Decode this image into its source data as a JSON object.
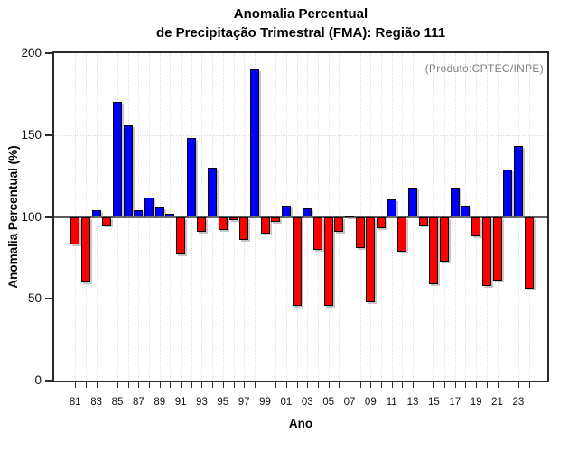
{
  "title": {
    "line1": "Anomalia Percentual",
    "line2": "de Precipitação Trimestral (FMA): Região 111"
  },
  "annotation": "(Produto:CPTEC/INPE)",
  "axes": {
    "y": {
      "label": "Anomalia Percentual (%)",
      "tick_labels": [
        "0",
        "50",
        "100",
        "150",
        "200"
      ],
      "grid_values": [
        50,
        150
      ]
    },
    "x": {
      "label": "Ano",
      "tick_labels": [
        "81",
        "83",
        "85",
        "87",
        "89",
        "91",
        "93",
        "95",
        "97",
        "99",
        "01",
        "03",
        "05",
        "07",
        "09",
        "11",
        "13",
        "15",
        "17",
        "19",
        "21",
        "23"
      ]
    }
  },
  "colors": {
    "bar_above_baseline": "#0000ff",
    "bar_below_baseline": "#ff0000",
    "bar_border": "#000000",
    "baseline_line": "#5a5a5a",
    "gridline": "#e2e2e2",
    "annotation_text": "#808080"
  },
  "chart_data": {
    "type": "bar",
    "title": "Anomalia Percentual de Precipitação Trimestral (FMA): Região 111",
    "xlabel": "Ano",
    "ylabel": "Anomalia Percentual (%)",
    "ylim": [
      0,
      200
    ],
    "baseline": 100,
    "grid": "dotted: vertical line at every year, horizontal lines at 50 and 150",
    "legend_position": "none",
    "color_rule": "blue when value >= 100, red when value < 100",
    "categories": [
      "81",
      "82",
      "83",
      "84",
      "85",
      "86",
      "87",
      "88",
      "89",
      "90",
      "91",
      "92",
      "93",
      "94",
      "95",
      "96",
      "97",
      "98",
      "99",
      "00",
      "01",
      "02",
      "03",
      "04",
      "05",
      "06",
      "07",
      "08",
      "09",
      "10",
      "11",
      "12",
      "13",
      "14",
      "15",
      "16",
      "17",
      "18",
      "19",
      "20",
      "21",
      "22",
      "23",
      "24"
    ],
    "values": [
      83,
      60,
      104,
      95,
      170,
      156,
      104,
      112,
      106,
      102,
      77,
      148,
      91,
      130,
      92,
      98,
      86,
      190,
      90,
      97,
      107,
      46,
      105,
      80,
      46,
      91,
      101,
      81,
      48,
      93,
      111,
      79,
      118,
      95,
      59,
      73,
      118,
      107,
      88,
      58,
      61,
      129,
      143,
      56
    ]
  }
}
